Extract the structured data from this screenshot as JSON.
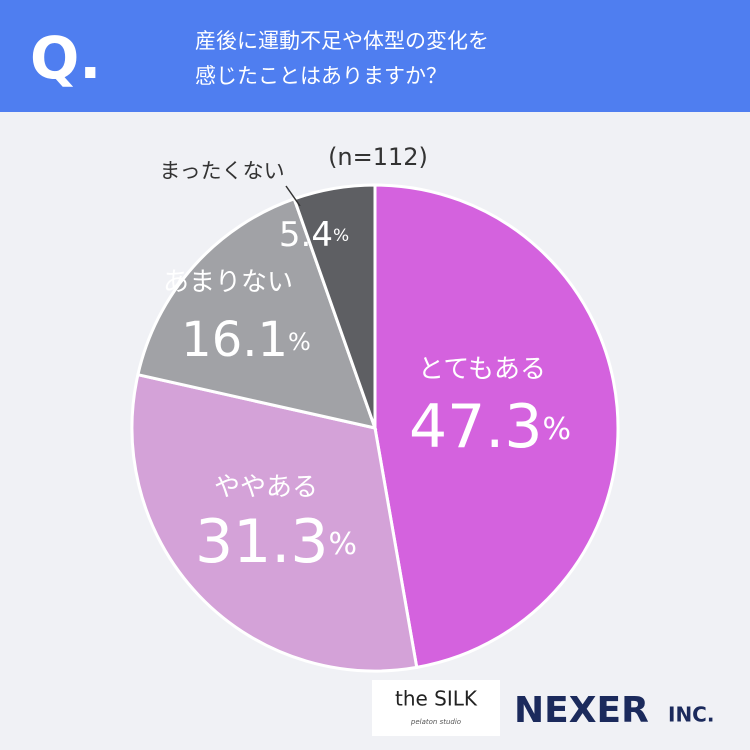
{
  "header": {
    "mark": "Q.",
    "question": [
      "産後に運動不足や体型の変化を",
      "感じたことはありますか？"
    ]
  },
  "chart_data": {
    "type": "pie",
    "note": "(n=112)",
    "categories": [
      "とてもある",
      "ややある",
      "あまりない",
      "まったくない"
    ],
    "values": [
      47.3,
      31.3,
      16.1,
      5.4
    ],
    "value_labels": [
      "47.3%",
      "31.3%",
      "16.1%",
      "5.4%"
    ],
    "colors": [
      "#d462de",
      "#d4a2d8",
      "#a1a2a6",
      "#5e5f63"
    ]
  },
  "logos": {
    "silk": "the SILK",
    "silk_sub": "pelaton studio",
    "nexer": "NEXER",
    "nexer_suffix": "INC."
  }
}
